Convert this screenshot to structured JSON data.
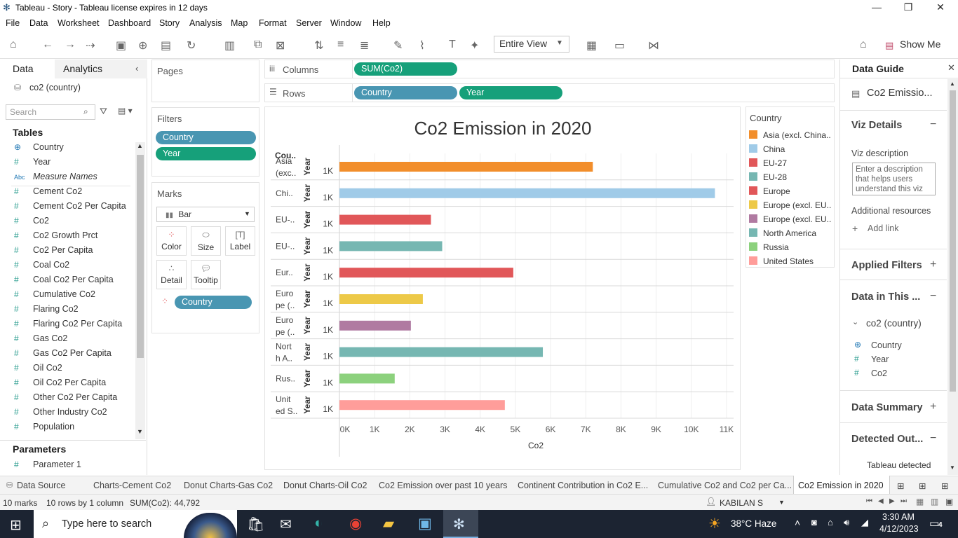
{
  "window": {
    "title": "Tableau - Story - Tableau license expires in 12 days"
  },
  "menu": [
    "File",
    "Data",
    "Worksheet",
    "Dashboard",
    "Story",
    "Analysis",
    "Map",
    "Format",
    "Server",
    "Window",
    "Help"
  ],
  "toolbar": {
    "view_select": "Entire View",
    "show_me": "Show Me"
  },
  "left_panel": {
    "tab_data": "Data",
    "tab_analytics": "Analytics",
    "datasource": "co2 (country)",
    "search_placeholder": "Search",
    "tables_header": "Tables",
    "fields": [
      {
        "icon": "globe",
        "name": "Country"
      },
      {
        "icon": "#",
        "name": "Year"
      },
      {
        "icon": "Abc",
        "name": "Measure Names"
      },
      {
        "icon": "#",
        "name": "Cement Co2"
      },
      {
        "icon": "#",
        "name": "Cement Co2 Per Capita"
      },
      {
        "icon": "#",
        "name": "Co2"
      },
      {
        "icon": "#",
        "name": "Co2 Growth Prct"
      },
      {
        "icon": "#",
        "name": "Co2 Per Capita"
      },
      {
        "icon": "#",
        "name": "Coal Co2"
      },
      {
        "icon": "#",
        "name": "Coal Co2 Per Capita"
      },
      {
        "icon": "#",
        "name": "Cumulative Co2"
      },
      {
        "icon": "#",
        "name": "Flaring Co2"
      },
      {
        "icon": "#",
        "name": "Flaring Co2 Per Capita"
      },
      {
        "icon": "#",
        "name": "Gas Co2"
      },
      {
        "icon": "#",
        "name": "Gas Co2 Per Capita"
      },
      {
        "icon": "#",
        "name": "Oil Co2"
      },
      {
        "icon": "#",
        "name": "Oil Co2 Per Capita"
      },
      {
        "icon": "#",
        "name": "Other Co2 Per Capita"
      },
      {
        "icon": "#",
        "name": "Other Industry Co2"
      },
      {
        "icon": "#",
        "name": "Population"
      }
    ],
    "parameters_header": "Parameters",
    "parameters": [
      "Parameter 1"
    ]
  },
  "cards": {
    "pages": "Pages",
    "filters": "Filters",
    "filter_pills": [
      "Country",
      "Year"
    ],
    "marks": "Marks",
    "mark_type": "Bar",
    "mark_buttons": [
      "Color",
      "Size",
      "Label",
      "Detail",
      "Tooltip"
    ],
    "marks_pill": "Country"
  },
  "shelves": {
    "columns_label": "Columns",
    "rows_label": "Rows",
    "columns_pill": "SUM(Co2)",
    "rows_pills": [
      "Country",
      "Year"
    ]
  },
  "chart_data": {
    "type": "bar",
    "title": "Co2 Emission in 2020",
    "row_header": "Cou..",
    "year_header": "Year",
    "year_value": "1K",
    "xlabel": "Co2",
    "xlim": [
      0,
      11200
    ],
    "xticks": [
      "0K",
      "1K",
      "2K",
      "3K",
      "4K",
      "5K",
      "6K",
      "7K",
      "8K",
      "9K",
      "10K",
      "11K"
    ],
    "categories": [
      {
        "label": [
          "Asia",
          "(exc.."
        ],
        "name": "Asia (excl. China..",
        "value": 7200,
        "color": "#f28e2b"
      },
      {
        "label": [
          "Chi.."
        ],
        "name": "China",
        "value": 10670,
        "color": "#a0cbe8"
      },
      {
        "label": [
          "EU-.."
        ],
        "name": "EU-27",
        "value": 2600,
        "color": "#e15759"
      },
      {
        "label": [
          "EU-.."
        ],
        "name": "EU-28",
        "value": 2920,
        "color": "#76b7b2"
      },
      {
        "label": [
          "Eur.."
        ],
        "name": "Europe",
        "value": 4940,
        "color": "#e15759"
      },
      {
        "label": [
          "Euro",
          "pe (.."
        ],
        "name": "Europe (excl. EU..",
        "value": 2370,
        "color": "#edc948"
      },
      {
        "label": [
          "Euro",
          "pe (.."
        ],
        "name": "Europe (excl. EU..",
        "value": 2030,
        "color": "#b07aa1"
      },
      {
        "label": [
          "Nort",
          "h A.."
        ],
        "name": "North America",
        "value": 5780,
        "color": "#76b7b2"
      },
      {
        "label": [
          "Rus.."
        ],
        "name": "Russia",
        "value": 1570,
        "color": "#8cd17d"
      },
      {
        "label": [
          "Unit",
          "ed S.."
        ],
        "name": "United States",
        "value": 4700,
        "color": "#ff9d9a"
      }
    ]
  },
  "legend": {
    "title": "Country",
    "items": [
      {
        "name": "Asia (excl. China..",
        "color": "#f28e2b"
      },
      {
        "name": "China",
        "color": "#a0cbe8"
      },
      {
        "name": "EU-27",
        "color": "#e15759"
      },
      {
        "name": "EU-28",
        "color": "#76b7b2"
      },
      {
        "name": "Europe",
        "color": "#e15759"
      },
      {
        "name": "Europe (excl. EU..",
        "color": "#edc948"
      },
      {
        "name": "Europe (excl. EU..",
        "color": "#b07aa1"
      },
      {
        "name": "North America",
        "color": "#76b7b2"
      },
      {
        "name": "Russia",
        "color": "#8cd17d"
      },
      {
        "name": "United States",
        "color": "#ff9d9a"
      }
    ]
  },
  "data_guide": {
    "title": "Data Guide",
    "sheet_name": "Co2 Emissio...",
    "viz_details": "Viz Details",
    "viz_description_label": "Viz description",
    "viz_description_placeholder": "Enter a description that helps users understand this viz",
    "additional_resources": "Additional resources",
    "add_link": "Add link",
    "applied_filters": "Applied Filters",
    "data_in_this": "Data in This ...",
    "datasource": "co2 (country)",
    "fields": [
      "Country",
      "Year",
      "Co2"
    ],
    "data_summary": "Data Summary",
    "detected_outliers": "Detected Out...",
    "detected_text": "Tableau detected"
  },
  "sheet_tabs": [
    "Data Source",
    "Charts-Cement Co2",
    "Donut Charts-Gas Co2",
    "Donut Charts-Oil Co2",
    "Co2 Emission over past 10 years",
    "Continent Contribution in Co2 E...",
    "Cumulative Co2 and Co2 per Ca...",
    "Co2 Emission in 2020"
  ],
  "status": {
    "marks": "10 marks",
    "rows": "10 rows by 1 column",
    "sum": "SUM(Co2): 44,792",
    "user": "KABILAN S"
  },
  "taskbar": {
    "search": "Type here to search",
    "weather": "38°C  Haze",
    "time": "3:30 AM",
    "date": "4/12/2023",
    "notifications": "4"
  }
}
